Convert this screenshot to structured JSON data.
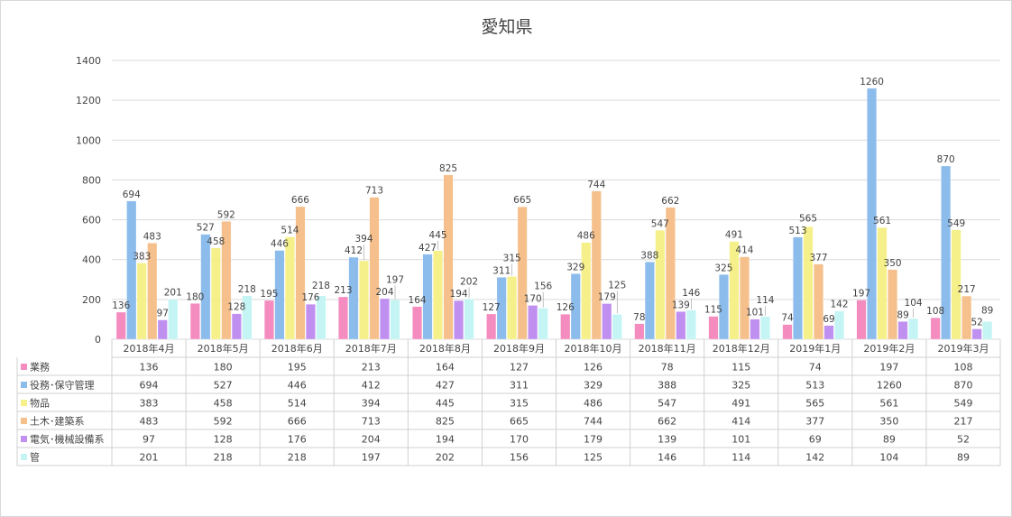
{
  "chart_data": {
    "type": "bar",
    "title": "愛知県",
    "categories": [
      "2018年4月",
      "2018年5月",
      "2018年6月",
      "2018年7月",
      "2018年8月",
      "2018年9月",
      "2018年10月",
      "2018年11月",
      "2018年12月",
      "2019年1月",
      "2019年2月",
      "2019年3月"
    ],
    "ylim": [
      0,
      1400
    ],
    "yticks": [
      "0",
      "200",
      "400",
      "600",
      "800",
      "1000",
      "1200",
      "1400"
    ],
    "grid": true,
    "legend": "data-table",
    "series": [
      {
        "name": "業務",
        "color": "#f48cc0",
        "values": [
          136,
          180,
          195,
          213,
          164,
          127,
          126,
          78,
          115,
          74,
          197,
          108
        ]
      },
      {
        "name": "役務･保守管理",
        "color": "#8cbcec",
        "values": [
          694,
          527,
          446,
          412,
          427,
          311,
          329,
          388,
          325,
          513,
          1260,
          870
        ]
      },
      {
        "name": "物品",
        "color": "#f5f08a",
        "values": [
          383,
          458,
          514,
          394,
          445,
          315,
          486,
          547,
          491,
          565,
          561,
          549
        ]
      },
      {
        "name": "土木･建築系",
        "color": "#f5c08c",
        "values": [
          483,
          592,
          666,
          713,
          825,
          665,
          744,
          662,
          414,
          377,
          350,
          217
        ]
      },
      {
        "name": "電気･機械設備系",
        "color": "#c090f0",
        "values": [
          97,
          128,
          176,
          204,
          194,
          170,
          179,
          139,
          101,
          69,
          89,
          52
        ]
      },
      {
        "name": "管",
        "color": "#c4f4f4",
        "values": [
          201,
          218,
          218,
          197,
          202,
          156,
          125,
          146,
          114,
          142,
          104,
          89
        ]
      }
    ]
  }
}
